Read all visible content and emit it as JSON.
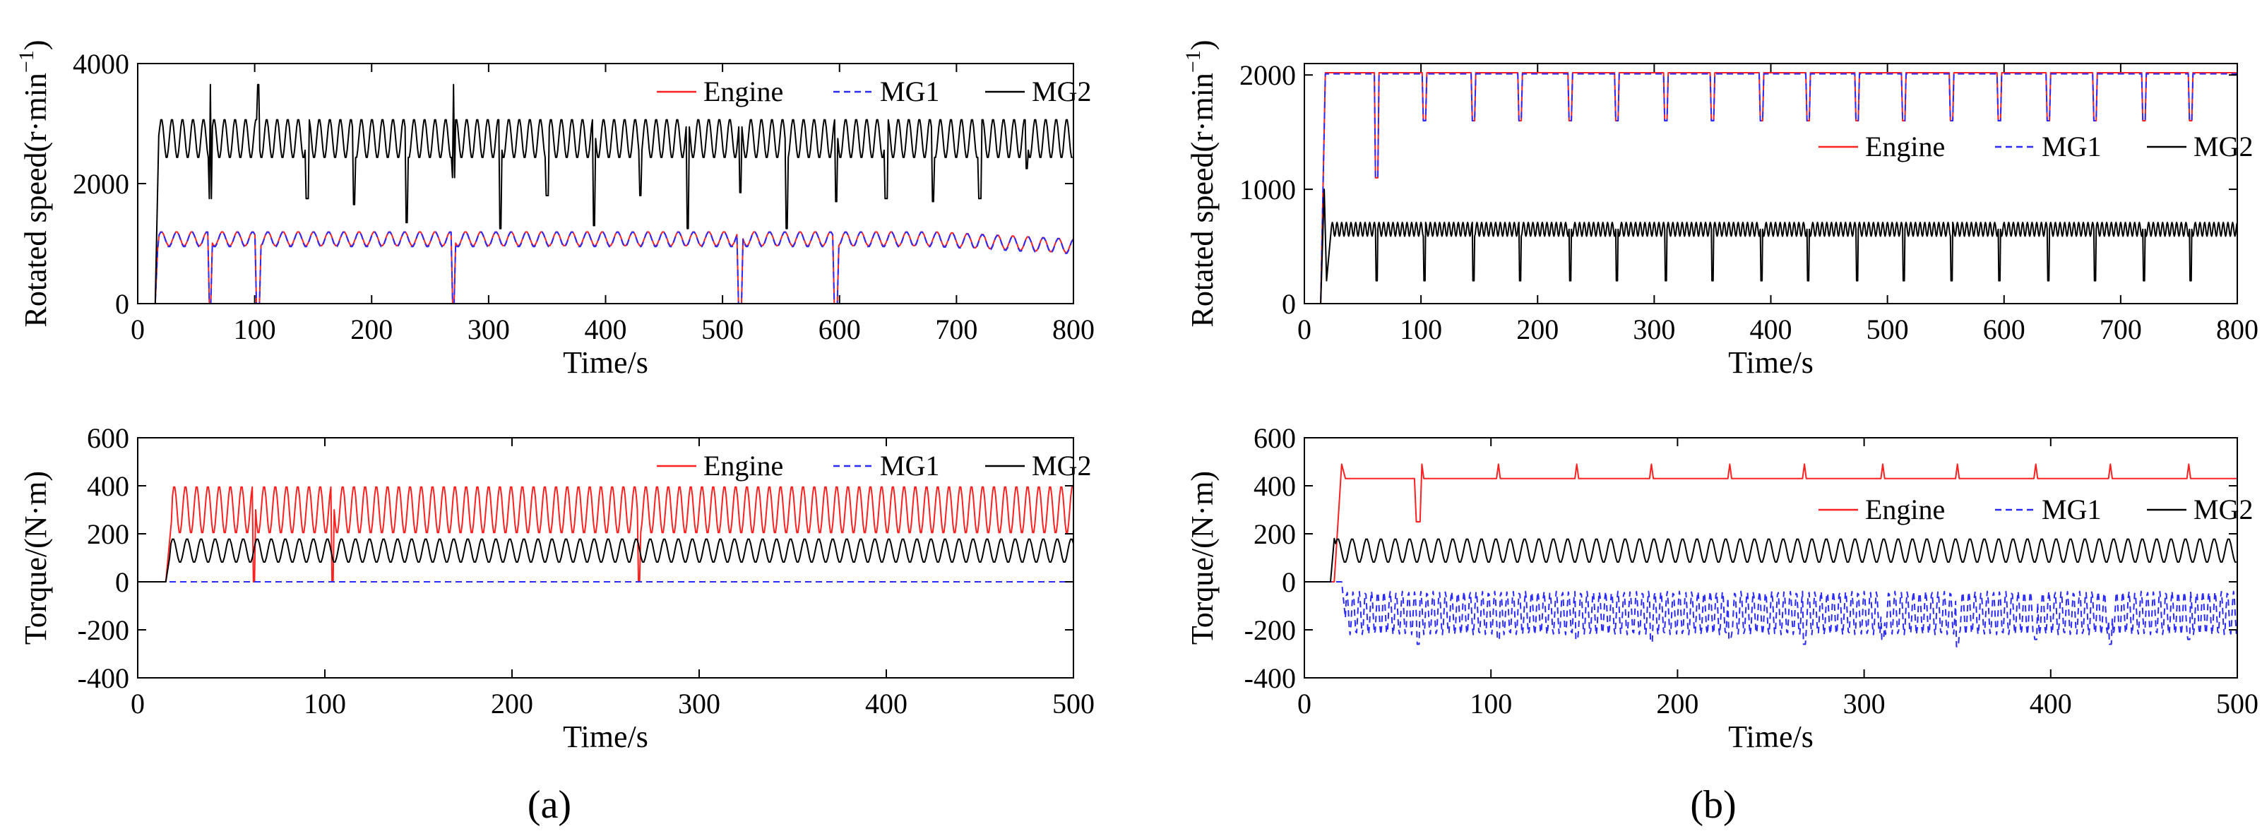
{
  "colors": {
    "engine": "#ff2020",
    "mg1": "#2a2aff",
    "mg2": "#000000",
    "axis": "#000000"
  },
  "figure": {
    "panel_a_label": "(a)",
    "panel_b_label": "(b)"
  },
  "chart_data": [
    {
      "id": "a-speed",
      "type": "line",
      "panel": "(a)",
      "xlabel": "Time/s",
      "ylabel_main": "Rotated speed(r·min",
      "ylabel_sup": "−1",
      "ylabel_tail": ")",
      "xlim": [
        0,
        800
      ],
      "ylim": [
        0,
        4000
      ],
      "xticks": [
        0,
        100,
        200,
        300,
        400,
        500,
        600,
        700,
        800
      ],
      "yticks": [
        0,
        2000,
        4000
      ],
      "legend": [
        "Engine",
        "MG1",
        "MG2"
      ],
      "legend_position": "top-right",
      "series": [
        {
          "name": "Engine",
          "color_key": "engine",
          "dashed": false,
          "start": 15,
          "ramp": [
            [
              15,
              0
            ],
            [
              17,
              900
            ]
          ],
          "base": 1080,
          "amp": 120,
          "period": 13,
          "end_drift": -120,
          "dips": [
            [
              62,
              0
            ],
            [
              103,
              0
            ],
            [
              270,
              0
            ],
            [
              515,
              0
            ],
            [
              597,
              0
            ]
          ]
        },
        {
          "name": "MG1",
          "color_key": "mg1",
          "dashed": true,
          "start": 15,
          "ramp": [
            [
              15,
              0
            ],
            [
              17,
              900
            ]
          ],
          "base": 1070,
          "amp": 125,
          "period": 13,
          "end_drift": -120,
          "dips": [
            [
              62,
              0
            ],
            [
              103,
              0
            ],
            [
              270,
              0
            ],
            [
              515,
              0
            ],
            [
              597,
              0
            ]
          ]
        },
        {
          "name": "MG2",
          "color_key": "mg2",
          "dashed": false,
          "start": 15,
          "ramp": [
            [
              15,
              0
            ],
            [
              18,
              2800
            ]
          ],
          "base": 2750,
          "amp": 330,
          "period": 9,
          "end_drift": 0,
          "dips": [
            [
              62,
              1750
            ],
            [
              103,
              1700
            ],
            [
              145,
              1750
            ],
            [
              185,
              1650
            ],
            [
              230,
              1350
            ],
            [
              270,
              2100
            ],
            [
              310,
              1250
            ],
            [
              350,
              1800
            ],
            [
              390,
              1300
            ],
            [
              430,
              1800
            ],
            [
              470,
              1250
            ],
            [
              515,
              1850
            ],
            [
              555,
              1250
            ],
            [
              597,
              1700
            ],
            [
              640,
              1750
            ],
            [
              680,
              1700
            ],
            [
              720,
              1750
            ],
            [
              760,
              2250
            ]
          ],
          "spikes": [
            [
              62,
              3650
            ],
            [
              103,
              3650
            ],
            [
              270,
              3650
            ]
          ]
        }
      ]
    },
    {
      "id": "a-torque",
      "type": "line",
      "panel": "(a)",
      "xlabel": "Time/s",
      "ylabel_main": "Torque/(N·m)",
      "xlim": [
        0,
        500
      ],
      "ylim": [
        -400,
        600
      ],
      "xticks": [
        0,
        100,
        200,
        300,
        400,
        500
      ],
      "yticks": [
        -400,
        -200,
        0,
        200,
        400,
        600
      ],
      "legend": [
        "Engine",
        "MG1",
        "MG2"
      ],
      "legend_position": "top-right",
      "series": [
        {
          "name": "Engine",
          "color_key": "engine",
          "dashed": false,
          "start": 15,
          "ramp": [
            [
              15,
              0
            ],
            [
              18,
              250
            ]
          ],
          "base": 300,
          "amp": 100,
          "period": 6,
          "end_drift": 0,
          "dips": [
            [
              62,
              0
            ],
            [
              104,
              0
            ],
            [
              268,
              0
            ]
          ]
        },
        {
          "name": "MG1",
          "color_key": "mg1",
          "dashed": true,
          "start": 0,
          "ramp": [],
          "base": 0,
          "amp": 0,
          "period": 10,
          "end_drift": 0,
          "dips": []
        },
        {
          "name": "MG2",
          "color_key": "mg2",
          "dashed": false,
          "start": 15,
          "ramp": [
            [
              15,
              0
            ],
            [
              17,
              100
            ]
          ],
          "base": 130,
          "amp": 50,
          "period": 7.5,
          "end_drift": 0,
          "dips": []
        }
      ]
    },
    {
      "id": "b-speed",
      "type": "line",
      "panel": "(b)",
      "xlabel": "Time/s",
      "ylabel_main": "Rotated speed(r·min",
      "ylabel_sup": "−1",
      "ylabel_tail": ")",
      "xlim": [
        0,
        800
      ],
      "ylim": [
        0,
        2100
      ],
      "xticks": [
        0,
        100,
        200,
        300,
        400,
        500,
        600,
        700,
        800
      ],
      "yticks": [
        0,
        1000,
        2000
      ],
      "legend": [
        "Engine",
        "MG1",
        "MG2"
      ],
      "legend_position": "upper-right",
      "series": [
        {
          "name": "Engine",
          "color_key": "engine",
          "dashed": false,
          "start": 14,
          "ramp": [
            [
              14,
              0
            ],
            [
              18,
              2020
            ]
          ],
          "base": 2020,
          "amp": 0,
          "period": 10,
          "end_drift": 0,
          "dips": [
            [
              62,
              1100
            ],
            [
              103,
              1600
            ],
            [
              145,
              1600
            ],
            [
              185,
              1600
            ],
            [
              228,
              1600
            ],
            [
              268,
              1600
            ],
            [
              310,
              1600
            ],
            [
              350,
              1600
            ],
            [
              392,
              1600
            ],
            [
              432,
              1600
            ],
            [
              474,
              1600
            ],
            [
              514,
              1600
            ],
            [
              555,
              1600
            ],
            [
              596,
              1600
            ],
            [
              638,
              1600
            ],
            [
              678,
              1600
            ],
            [
              720,
              1600
            ],
            [
              760,
              1600
            ]
          ]
        },
        {
          "name": "MG1",
          "color_key": "mg1",
          "dashed": true,
          "start": 14,
          "ramp": [
            [
              14,
              0
            ],
            [
              18,
              2010
            ]
          ],
          "base": 2010,
          "amp": 0,
          "period": 10,
          "end_drift": 0,
          "dips": [
            [
              62,
              1100
            ],
            [
              103,
              1600
            ],
            [
              145,
              1600
            ],
            [
              185,
              1600
            ],
            [
              228,
              1600
            ],
            [
              268,
              1600
            ],
            [
              310,
              1600
            ],
            [
              350,
              1600
            ],
            [
              392,
              1600
            ],
            [
              432,
              1600
            ],
            [
              474,
              1600
            ],
            [
              514,
              1600
            ],
            [
              555,
              1600
            ],
            [
              596,
              1600
            ],
            [
              638,
              1600
            ],
            [
              678,
              1600
            ],
            [
              720,
              1600
            ],
            [
              760,
              1600
            ]
          ]
        },
        {
          "name": "MG2",
          "color_key": "mg2",
          "dashed": false,
          "start": 14,
          "ramp": [
            [
              14,
              0
            ],
            [
              17,
              1000
            ],
            [
              19,
              200
            ],
            [
              23,
              650
            ]
          ],
          "base": 650,
          "amp": 60,
          "period": 4,
          "end_drift": 0,
          "dips": [
            [
              22,
              200
            ],
            [
              62,
              200
            ],
            [
              103,
              200
            ],
            [
              145,
              200
            ],
            [
              185,
              200
            ],
            [
              228,
              200
            ],
            [
              268,
              200
            ],
            [
              310,
              200
            ],
            [
              350,
              200
            ],
            [
              392,
              200
            ],
            [
              432,
              200
            ],
            [
              474,
              200
            ],
            [
              514,
              200
            ],
            [
              555,
              200
            ],
            [
              596,
              200
            ],
            [
              638,
              200
            ],
            [
              678,
              200
            ],
            [
              720,
              200
            ],
            [
              760,
              200
            ]
          ]
        }
      ]
    },
    {
      "id": "b-torque",
      "type": "line",
      "panel": "(b)",
      "xlabel": "Time/s",
      "ylabel_main": "Torque/(N·m)",
      "xlim": [
        0,
        500
      ],
      "ylim": [
        -400,
        600
      ],
      "xticks": [
        0,
        100,
        200,
        300,
        400,
        500
      ],
      "yticks": [
        -400,
        -200,
        0,
        200,
        400,
        600
      ],
      "legend": [
        "Engine",
        "MG1",
        "MG2"
      ],
      "legend_position": "middle-right",
      "series": [
        {
          "name": "Engine",
          "color_key": "engine",
          "dashed": false,
          "start": 16,
          "ramp": [
            [
              16,
              0
            ],
            [
              20,
              490
            ],
            [
              22,
              430
            ]
          ],
          "base": 430,
          "amp": 0,
          "period": 10,
          "end_drift": 0,
          "dips": [
            [
              61,
              250
            ]
          ],
          "spikes": [
            [
              63,
              490
            ],
            [
              104,
              490
            ],
            [
              146,
              490
            ],
            [
              186,
              490
            ],
            [
              228,
              490
            ],
            [
              268,
              490
            ],
            [
              310,
              490
            ],
            [
              350,
              490
            ],
            [
              392,
              490
            ],
            [
              432,
              490
            ],
            [
              474,
              490
            ]
          ]
        },
        {
          "name": "MG1",
          "color_key": "mg1",
          "dashed": true,
          "start": 20,
          "ramp": [
            [
              20,
              0
            ],
            [
              22,
              -150
            ]
          ],
          "base": -130,
          "amp": 90,
          "period": 3.3,
          "end_drift": 0,
          "dips": [
            [
              61,
              -260
            ],
            [
              104,
              -240
            ],
            [
              146,
              -240
            ],
            [
              186,
              -250
            ],
            [
              228,
              -240
            ],
            [
              268,
              -260
            ],
            [
              310,
              -240
            ],
            [
              350,
              -270
            ],
            [
              392,
              -240
            ],
            [
              432,
              -260
            ],
            [
              474,
              -240
            ]
          ]
        },
        {
          "name": "MG2",
          "color_key": "mg2",
          "dashed": false,
          "start": 14,
          "ramp": [
            [
              14,
              0
            ],
            [
              16,
              180
            ]
          ],
          "base": 130,
          "amp": 50,
          "period": 7.7,
          "end_drift": 0,
          "dips": []
        }
      ]
    }
  ]
}
